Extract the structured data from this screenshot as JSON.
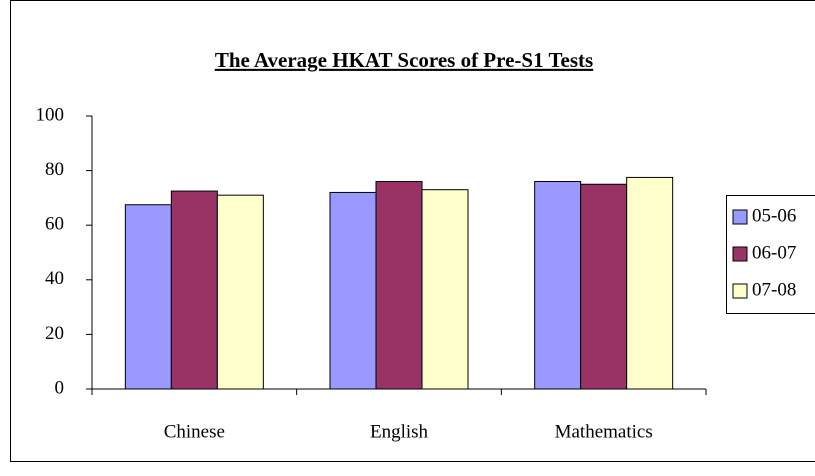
{
  "chart_data": {
    "type": "bar",
    "title": "The Average HKAT Scores of Pre-S1 Tests",
    "categories": [
      "Chinese",
      "English",
      "Mathematics"
    ],
    "series": [
      {
        "name": "05-06",
        "color": "#9999ff",
        "values": [
          67.5,
          72,
          76
        ]
      },
      {
        "name": "06-07",
        "color": "#993366",
        "values": [
          72.5,
          76,
          75
        ]
      },
      {
        "name": "07-08",
        "color": "#ffffcc",
        "values": [
          71,
          73,
          77.5
        ]
      }
    ],
    "ylim": [
      0,
      100
    ],
    "yticks": [
      0,
      20,
      40,
      60,
      80,
      100
    ],
    "grid": false,
    "legend": "right"
  }
}
